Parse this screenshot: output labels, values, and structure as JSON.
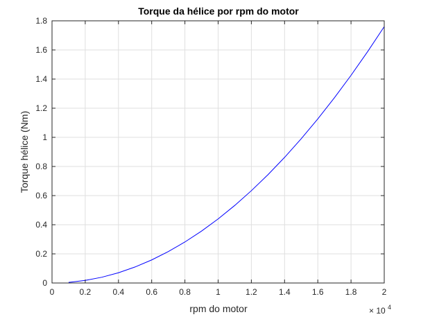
{
  "chart_data": {
    "type": "line",
    "title": "Torque da hélice por rpm do motor",
    "xlabel": "rpm do motor",
    "ylabel": "Torque hélice (Nm)",
    "x_multiplier_base": "× 10",
    "x_multiplier_exp": "4",
    "xlim": [
      0,
      20000
    ],
    "ylim": [
      0,
      1.8
    ],
    "x_ticks": [
      0,
      2000,
      4000,
      6000,
      8000,
      10000,
      12000,
      14000,
      16000,
      18000,
      20000
    ],
    "x_tick_labels": [
      "0",
      "0.2",
      "0.4",
      "0.6",
      "0.8",
      "1",
      "1.2",
      "1.4",
      "1.6",
      "1.8",
      "2"
    ],
    "y_ticks": [
      0,
      0.2,
      0.4,
      0.6,
      0.8,
      1,
      1.2,
      1.4,
      1.6,
      1.8
    ],
    "y_tick_labels": [
      "0",
      "0.2",
      "0.4",
      "0.6",
      "0.8",
      "1",
      "1.2",
      "1.4",
      "1.6",
      "1.8"
    ],
    "grid": true,
    "line_color": "#0000ff",
    "series": [
      {
        "x": [
          1000,
          2000,
          3000,
          4000,
          5000,
          6000,
          7000,
          8000,
          9000,
          10000,
          11000,
          12000,
          13000,
          14000,
          15000,
          16000,
          17000,
          18000,
          19000,
          20000
        ],
        "y": [
          0.0044,
          0.0176,
          0.0396,
          0.0704,
          0.11,
          0.1584,
          0.2156,
          0.2816,
          0.3564,
          0.44,
          0.5324,
          0.6336,
          0.7436,
          0.8624,
          0.99,
          1.1264,
          1.2716,
          1.4256,
          1.5884,
          1.76
        ]
      }
    ]
  }
}
